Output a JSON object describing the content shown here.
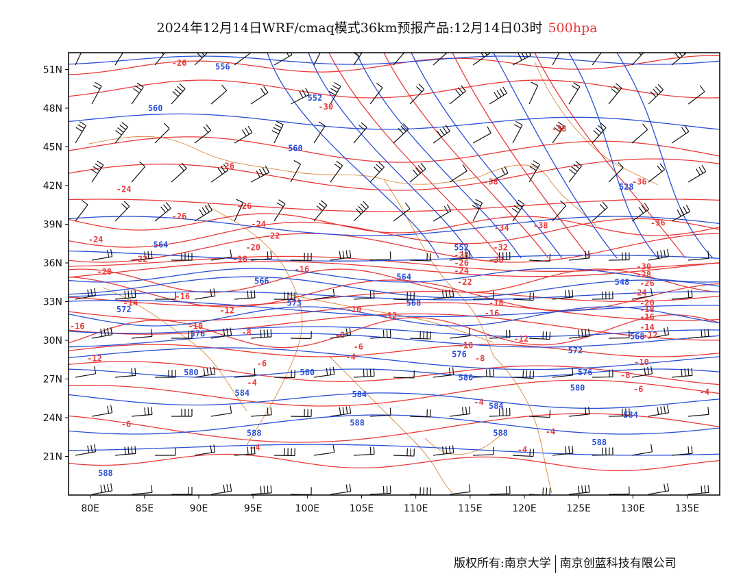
{
  "title": {
    "main": "2024年12月14日WRF/cmaq模式36km预报产品:12月14日03时",
    "level": "500hpa"
  },
  "map": {
    "lon_range": [
      78,
      138
    ],
    "lat_range": [
      18,
      52.3
    ],
    "lon_ticks": [
      "80E",
      "85E",
      "90E",
      "95E",
      "100E",
      "105E",
      "110E",
      "115E",
      "120E",
      "125E",
      "130E",
      "135E"
    ],
    "lat_ticks": [
      "51N",
      "48N",
      "45N",
      "42N",
      "39N",
      "36N",
      "33N",
      "30N",
      "27N",
      "24N",
      "21N"
    ],
    "colors": {
      "height_contour": "#2a4fd6",
      "temperature_contour": "#e83a3a",
      "boundaries": "#d9893a",
      "wind_barbs": "#111111",
      "frame": "#000000"
    },
    "height_labels": [
      {
        "text": "556",
        "lon": 92.2,
        "lat": 51.2
      },
      {
        "text": "560",
        "lon": 86.0,
        "lat": 48.0
      },
      {
        "text": "552",
        "lon": 100.7,
        "lat": 48.8
      },
      {
        "text": "560",
        "lon": 98.9,
        "lat": 44.9
      },
      {
        "text": "528",
        "lon": 129.4,
        "lat": 41.9
      },
      {
        "text": "564",
        "lon": 86.5,
        "lat": 37.4
      },
      {
        "text": "552",
        "lon": 114.2,
        "lat": 37.2
      },
      {
        "text": "564",
        "lon": 108.9,
        "lat": 34.9
      },
      {
        "text": "566",
        "lon": 95.8,
        "lat": 34.6
      },
      {
        "text": "548",
        "lon": 129.0,
        "lat": 34.5
      },
      {
        "text": "572",
        "lon": 83.1,
        "lat": 32.4
      },
      {
        "text": "573",
        "lon": 98.8,
        "lat": 32.9
      },
      {
        "text": "568",
        "lon": 109.8,
        "lat": 32.9
      },
      {
        "text": "576",
        "lon": 89.9,
        "lat": 30.5
      },
      {
        "text": "568",
        "lon": 130.4,
        "lat": 30.3
      },
      {
        "text": "572",
        "lon": 124.7,
        "lat": 29.2
      },
      {
        "text": "576",
        "lon": 114.0,
        "lat": 28.9
      },
      {
        "text": "580",
        "lon": 89.3,
        "lat": 27.5
      },
      {
        "text": "580",
        "lon": 100.0,
        "lat": 27.5
      },
      {
        "text": "580",
        "lon": 114.6,
        "lat": 27.1
      },
      {
        "text": "576",
        "lon": 125.6,
        "lat": 27.5
      },
      {
        "text": "580",
        "lon": 124.9,
        "lat": 26.3
      },
      {
        "text": "584",
        "lon": 94.0,
        "lat": 25.9
      },
      {
        "text": "584",
        "lon": 104.8,
        "lat": 25.8
      },
      {
        "text": "584",
        "lon": 117.4,
        "lat": 24.9
      },
      {
        "text": "584",
        "lon": 129.8,
        "lat": 24.2
      },
      {
        "text": "588",
        "lon": 104.6,
        "lat": 23.6
      },
      {
        "text": "588",
        "lon": 95.1,
        "lat": 22.8
      },
      {
        "text": "588",
        "lon": 117.8,
        "lat": 22.8
      },
      {
        "text": "588",
        "lon": 126.9,
        "lat": 22.1
      },
      {
        "text": "588",
        "lon": 81.4,
        "lat": 19.7
      }
    ],
    "temperature_labels": [
      {
        "text": "-26",
        "lon": 88.2,
        "lat": 51.5
      },
      {
        "text": "-30",
        "lon": 101.7,
        "lat": 48.1
      },
      {
        "text": "-26",
        "lon": 92.6,
        "lat": 43.5
      },
      {
        "text": "-24",
        "lon": 83.1,
        "lat": 41.7
      },
      {
        "text": "-26",
        "lon": 88.2,
        "lat": 39.6
      },
      {
        "text": "-38",
        "lon": 123.2,
        "lat": 46.4
      },
      {
        "text": "-38",
        "lon": 116.9,
        "lat": 42.3
      },
      {
        "text": "-36",
        "lon": 130.6,
        "lat": 42.3
      },
      {
        "text": "-26",
        "lon": 94.2,
        "lat": 40.4
      },
      {
        "text": "-24",
        "lon": 95.5,
        "lat": 39.0
      },
      {
        "text": "-38",
        "lon": 121.5,
        "lat": 38.9
      },
      {
        "text": "-36",
        "lon": 132.3,
        "lat": 39.1
      },
      {
        "text": "-34",
        "lon": 117.9,
        "lat": 38.7
      },
      {
        "text": "-22",
        "lon": 96.8,
        "lat": 38.1
      },
      {
        "text": "-24",
        "lon": 80.5,
        "lat": 37.8
      },
      {
        "text": "-20",
        "lon": 95.0,
        "lat": 37.2
      },
      {
        "text": "-32",
        "lon": 117.8,
        "lat": 37.2
      },
      {
        "text": "-22",
        "lon": 84.6,
        "lat": 36.3
      },
      {
        "text": "-18",
        "lon": 93.8,
        "lat": 36.3
      },
      {
        "text": "-30",
        "lon": 117.4,
        "lat": 36.2
      },
      {
        "text": "-28",
        "lon": 114.2,
        "lat": 36.6
      },
      {
        "text": "-26",
        "lon": 114.2,
        "lat": 36.0
      },
      {
        "text": "-24",
        "lon": 114.2,
        "lat": 35.4
      },
      {
        "text": "-20",
        "lon": 81.3,
        "lat": 35.3
      },
      {
        "text": "-16",
        "lon": 99.5,
        "lat": 35.5
      },
      {
        "text": "-22",
        "lon": 114.5,
        "lat": 34.5
      },
      {
        "text": "-30",
        "lon": 131.0,
        "lat": 35.7
      },
      {
        "text": "-28",
        "lon": 131.0,
        "lat": 35.1
      },
      {
        "text": "-26",
        "lon": 131.3,
        "lat": 34.4
      },
      {
        "text": "-24",
        "lon": 130.6,
        "lat": 33.7
      },
      {
        "text": "-14",
        "lon": 83.7,
        "lat": 32.9
      },
      {
        "text": "-16",
        "lon": 88.5,
        "lat": 33.4
      },
      {
        "text": "-12",
        "lon": 92.6,
        "lat": 32.3
      },
      {
        "text": "-10",
        "lon": 104.3,
        "lat": 32.4
      },
      {
        "text": "-12",
        "lon": 107.6,
        "lat": 31.9
      },
      {
        "text": "-18",
        "lon": 117.4,
        "lat": 32.9
      },
      {
        "text": "-16",
        "lon": 117.0,
        "lat": 32.1
      },
      {
        "text": "-20",
        "lon": 131.3,
        "lat": 32.9
      },
      {
        "text": "-18",
        "lon": 131.3,
        "lat": 32.4
      },
      {
        "text": "-16",
        "lon": 131.3,
        "lat": 31.8
      },
      {
        "text": "-14",
        "lon": 131.3,
        "lat": 31.0
      },
      {
        "text": "-12",
        "lon": 131.6,
        "lat": 30.4
      },
      {
        "text": "-10",
        "lon": 89.7,
        "lat": 31.1
      },
      {
        "text": "-8",
        "lon": 94.4,
        "lat": 30.6
      },
      {
        "text": "-16",
        "lon": 78.8,
        "lat": 31.1
      },
      {
        "text": "-8",
        "lon": 103.0,
        "lat": 30.4
      },
      {
        "text": "-6",
        "lon": 104.7,
        "lat": 29.5
      },
      {
        "text": "-4",
        "lon": 104.0,
        "lat": 28.7
      },
      {
        "text": "-12",
        "lon": 119.7,
        "lat": 30.1
      },
      {
        "text": "-10",
        "lon": 114.6,
        "lat": 29.6
      },
      {
        "text": "-8",
        "lon": 115.9,
        "lat": 28.6
      },
      {
        "text": "-12",
        "lon": 80.4,
        "lat": 28.6
      },
      {
        "text": "-6",
        "lon": 95.8,
        "lat": 28.2
      },
      {
        "text": "-10",
        "lon": 130.8,
        "lat": 28.3
      },
      {
        "text": "-8",
        "lon": 129.3,
        "lat": 27.3
      },
      {
        "text": "-4",
        "lon": 94.9,
        "lat": 26.7
      },
      {
        "text": "-6",
        "lon": 130.5,
        "lat": 26.2
      },
      {
        "text": "-4",
        "lon": 136.6,
        "lat": 26.0
      },
      {
        "text": "-4",
        "lon": 115.8,
        "lat": 25.2
      },
      {
        "text": "-6",
        "lon": 83.3,
        "lat": 23.5
      },
      {
        "text": "-4",
        "lon": 122.4,
        "lat": 22.9
      },
      {
        "text": "-4",
        "lon": 95.2,
        "lat": 21.7
      },
      {
        "text": "-4",
        "lon": 119.8,
        "lat": 21.5
      }
    ]
  },
  "footer": {
    "left": "版权所有:南京大学",
    "right": "南京创蓝科技有限公司"
  }
}
